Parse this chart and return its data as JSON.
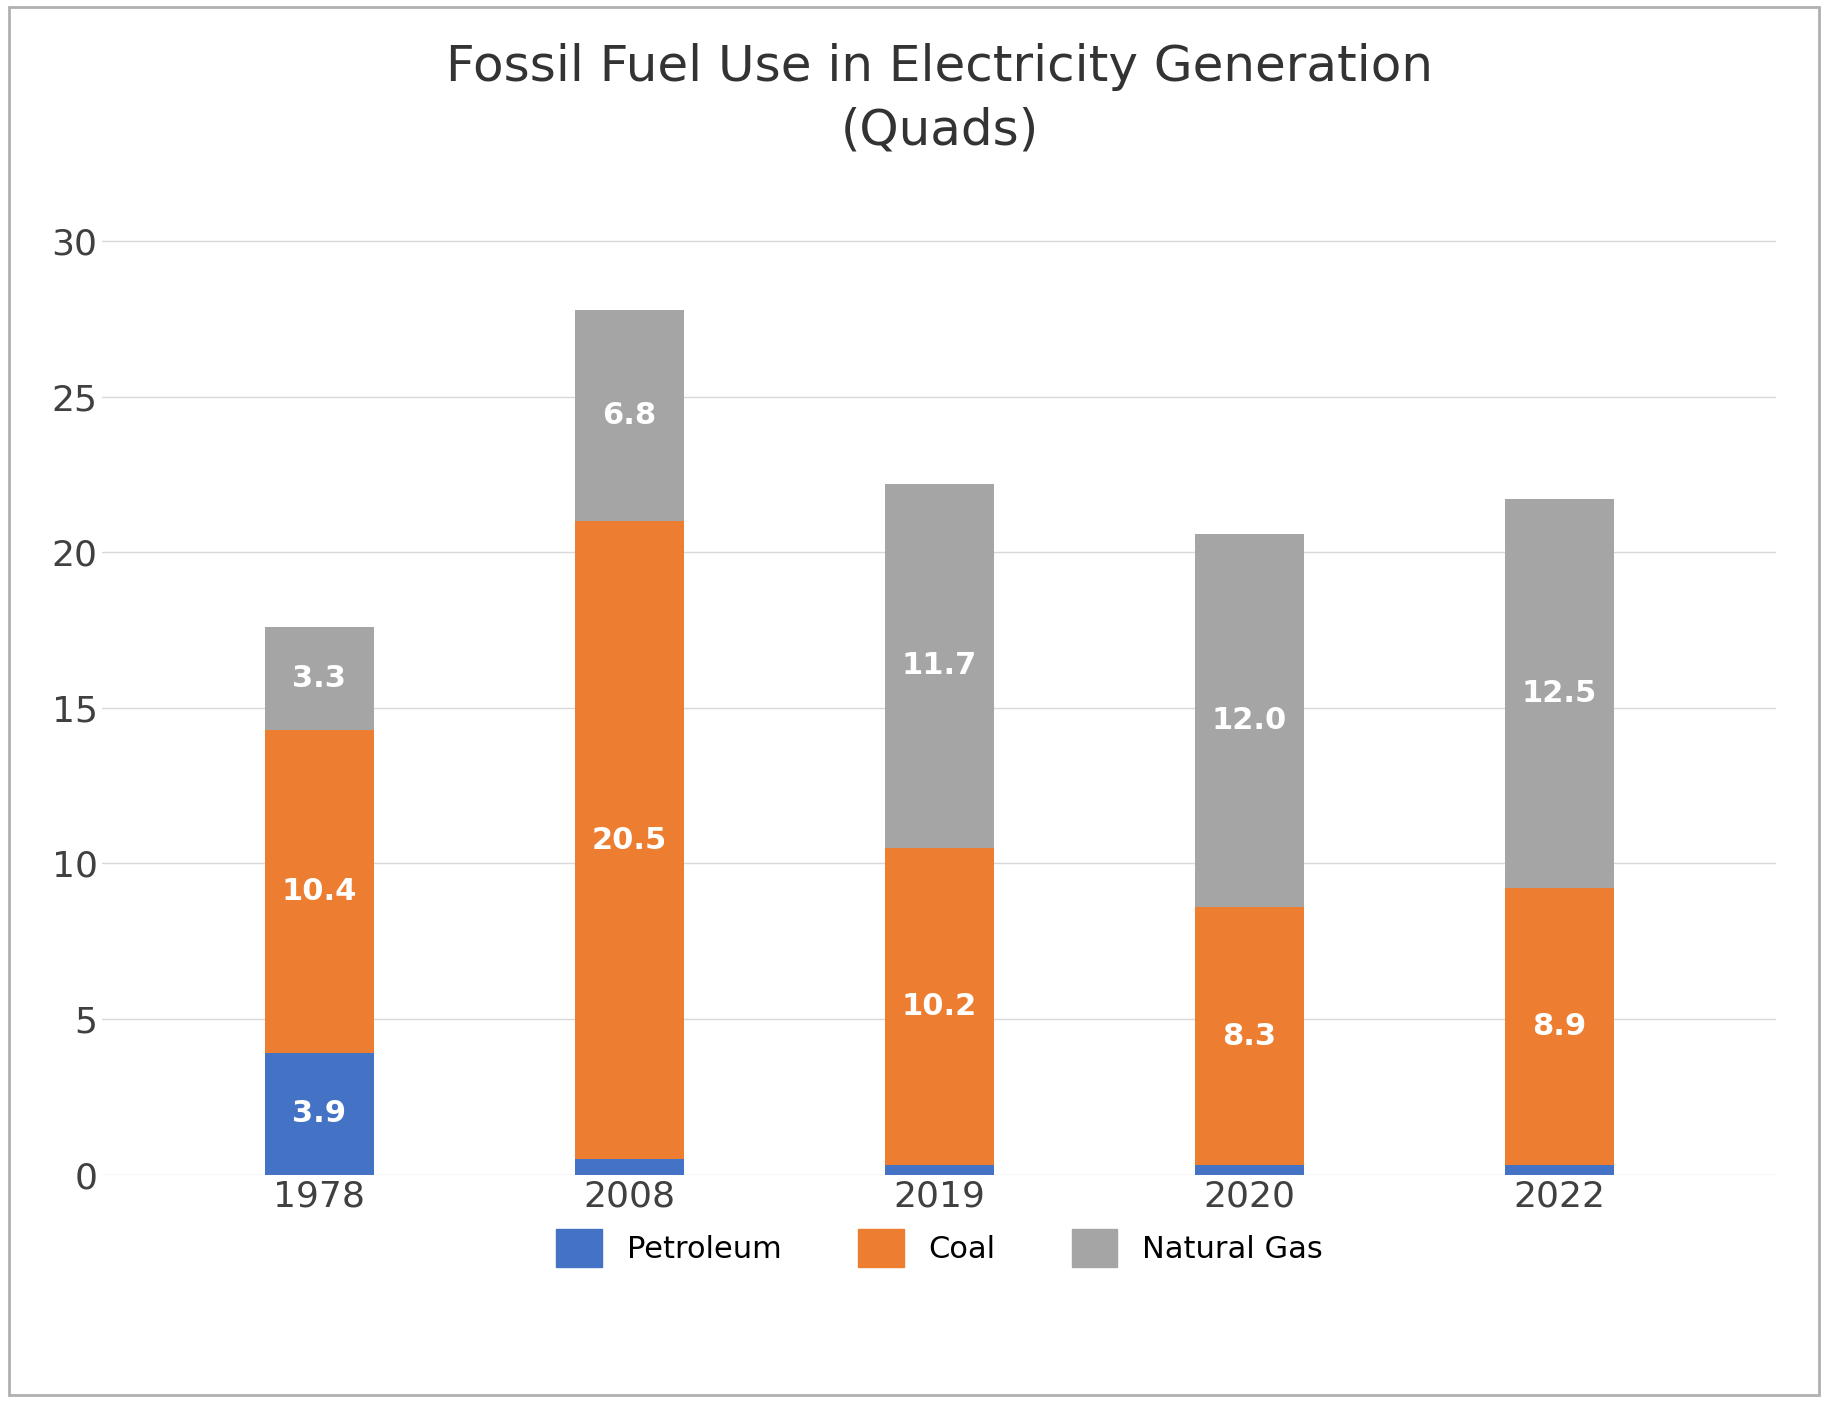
{
  "title": "Fossil Fuel Use in Electricity Generation\n(Quads)",
  "categories": [
    "1978",
    "2008",
    "2019",
    "2020",
    "2022"
  ],
  "petroleum": [
    3.9,
    0.5,
    0.3,
    0.3,
    0.3
  ],
  "coal": [
    10.4,
    20.5,
    10.2,
    8.3,
    8.9
  ],
  "natural_gas": [
    3.3,
    6.8,
    11.7,
    12.0,
    12.5
  ],
  "petroleum_labels": [
    "3.9",
    "",
    "",
    "",
    ""
  ],
  "coal_labels": [
    "10.4",
    "20.5",
    "10.2",
    "8.3",
    "8.9"
  ],
  "natural_gas_labels": [
    "3.3",
    "6.8",
    "11.7",
    "12.0",
    "12.5"
  ],
  "petroleum_color": "#4472c4",
  "coal_color": "#ed7d31",
  "natural_gas_color": "#a5a5a5",
  "ylim": [
    0,
    32
  ],
  "yticks": [
    0,
    5,
    10,
    15,
    20,
    25,
    30
  ],
  "background_color": "#ffffff",
  "title_fontsize": 36,
  "tick_fontsize": 26,
  "label_fontsize": 22,
  "legend_fontsize": 22,
  "bar_width": 0.35,
  "legend_labels": [
    "Petroleum",
    "Coal",
    "Natural Gas"
  ],
  "border_color": "#b0b0b0",
  "grid_color": "#d8d8d8"
}
